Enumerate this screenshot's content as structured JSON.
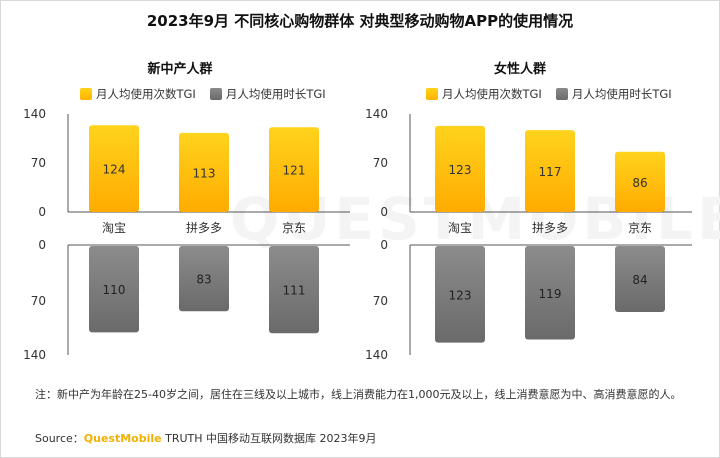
{
  "title": "2023年9月 不同核心购物群体 对典型移动购物APP的使用情况",
  "watermark": "QUESTMOBILE",
  "legend": {
    "series1": "月人均使用次数TGI",
    "series2": "月人均使用时长TGI"
  },
  "colors": {
    "series1": "#ffc400",
    "series2": "#7d7d7d"
  },
  "chart_data": [
    {
      "type": "bar",
      "title": "新中产人群",
      "categories": [
        "淘宝",
        "拼多多",
        "京东"
      ],
      "series": [
        {
          "name": "月人均使用次数TGI",
          "values": [
            124,
            113,
            121
          ]
        },
        {
          "name": "月人均使用时长TGI",
          "values": [
            110,
            83,
            111
          ]
        }
      ],
      "ylim": [
        0,
        140
      ],
      "yticks": [
        "0",
        "70",
        "140"
      ]
    },
    {
      "type": "bar",
      "title": "女性人群",
      "categories": [
        "淘宝",
        "拼多多",
        "京东"
      ],
      "series": [
        {
          "name": "月人均使用次数TGI",
          "values": [
            123,
            117,
            86
          ]
        },
        {
          "name": "月人均使用时长TGI",
          "values": [
            123,
            119,
            84
          ]
        }
      ],
      "ylim": [
        0,
        140
      ],
      "yticks": [
        "0",
        "70",
        "140"
      ]
    }
  ],
  "note": "注：新中产为年龄在25-40岁之间，居住在三线及以上城市，线上消费能力在1,000元及以上，线上消费意愿为中、高消费意愿的人。",
  "source": {
    "prefix": "Source：",
    "brand": "QuestMobile",
    "suffix": " TRUTH 中国移动互联网数据库 2023年9月"
  }
}
